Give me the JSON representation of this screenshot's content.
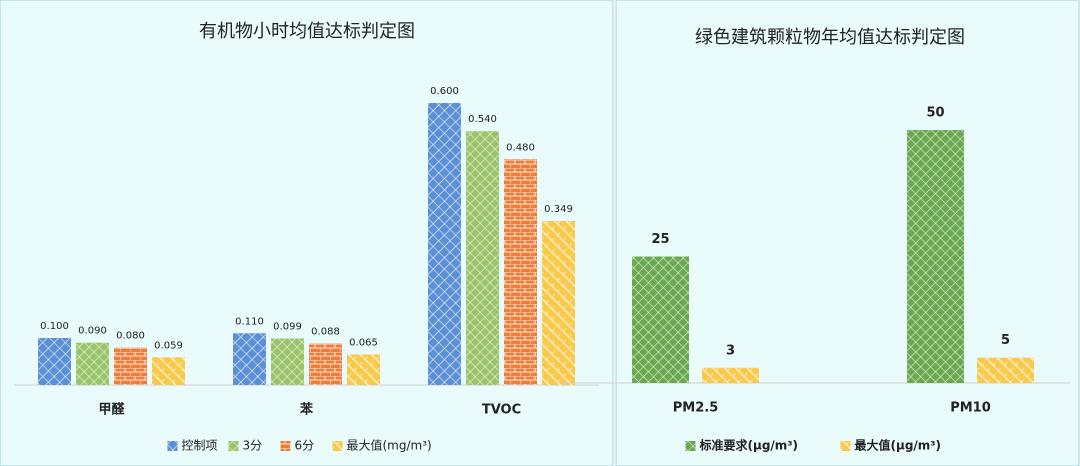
{
  "chart_data": [
    {
      "type": "bar",
      "title": "有机物小时均值达标判定图",
      "categories": [
        "甲醛",
        "苯",
        "TVOC"
      ],
      "series": [
        {
          "name": "控制项",
          "color": "#5b8fd6",
          "values": [
            0.1,
            0.11,
            0.6
          ],
          "value_labels": [
            "0.100",
            "0.110",
            "0.600"
          ]
        },
        {
          "name": "3分",
          "color": "#9bc46a",
          "values": [
            0.09,
            0.099,
            0.54
          ],
          "value_labels": [
            "0.090",
            "0.099",
            "0.540"
          ]
        },
        {
          "name": "6分",
          "color": "#f07c3a",
          "values": [
            0.08,
            0.088,
            0.48
          ],
          "value_labels": [
            "0.080",
            "0.088",
            "0.480"
          ]
        },
        {
          "name": "最大值(mg/m³)",
          "color": "#f9c94a",
          "values": [
            0.059,
            0.065,
            0.349
          ],
          "value_labels": [
            "0.059",
            "0.065",
            "0.349"
          ]
        }
      ]
    },
    {
      "type": "bar",
      "title": "绿色建筑颗粒物年均值达标判定图",
      "categories": [
        "PM2.5",
        "PM10"
      ],
      "series": [
        {
          "name": "标准要求(μg/m³)",
          "color": "#6aa84f",
          "values": [
            25,
            50
          ]
        },
        {
          "name": "最大值(μg/m³)",
          "color": "#f9c94a",
          "values": [
            3,
            5
          ]
        }
      ]
    }
  ]
}
